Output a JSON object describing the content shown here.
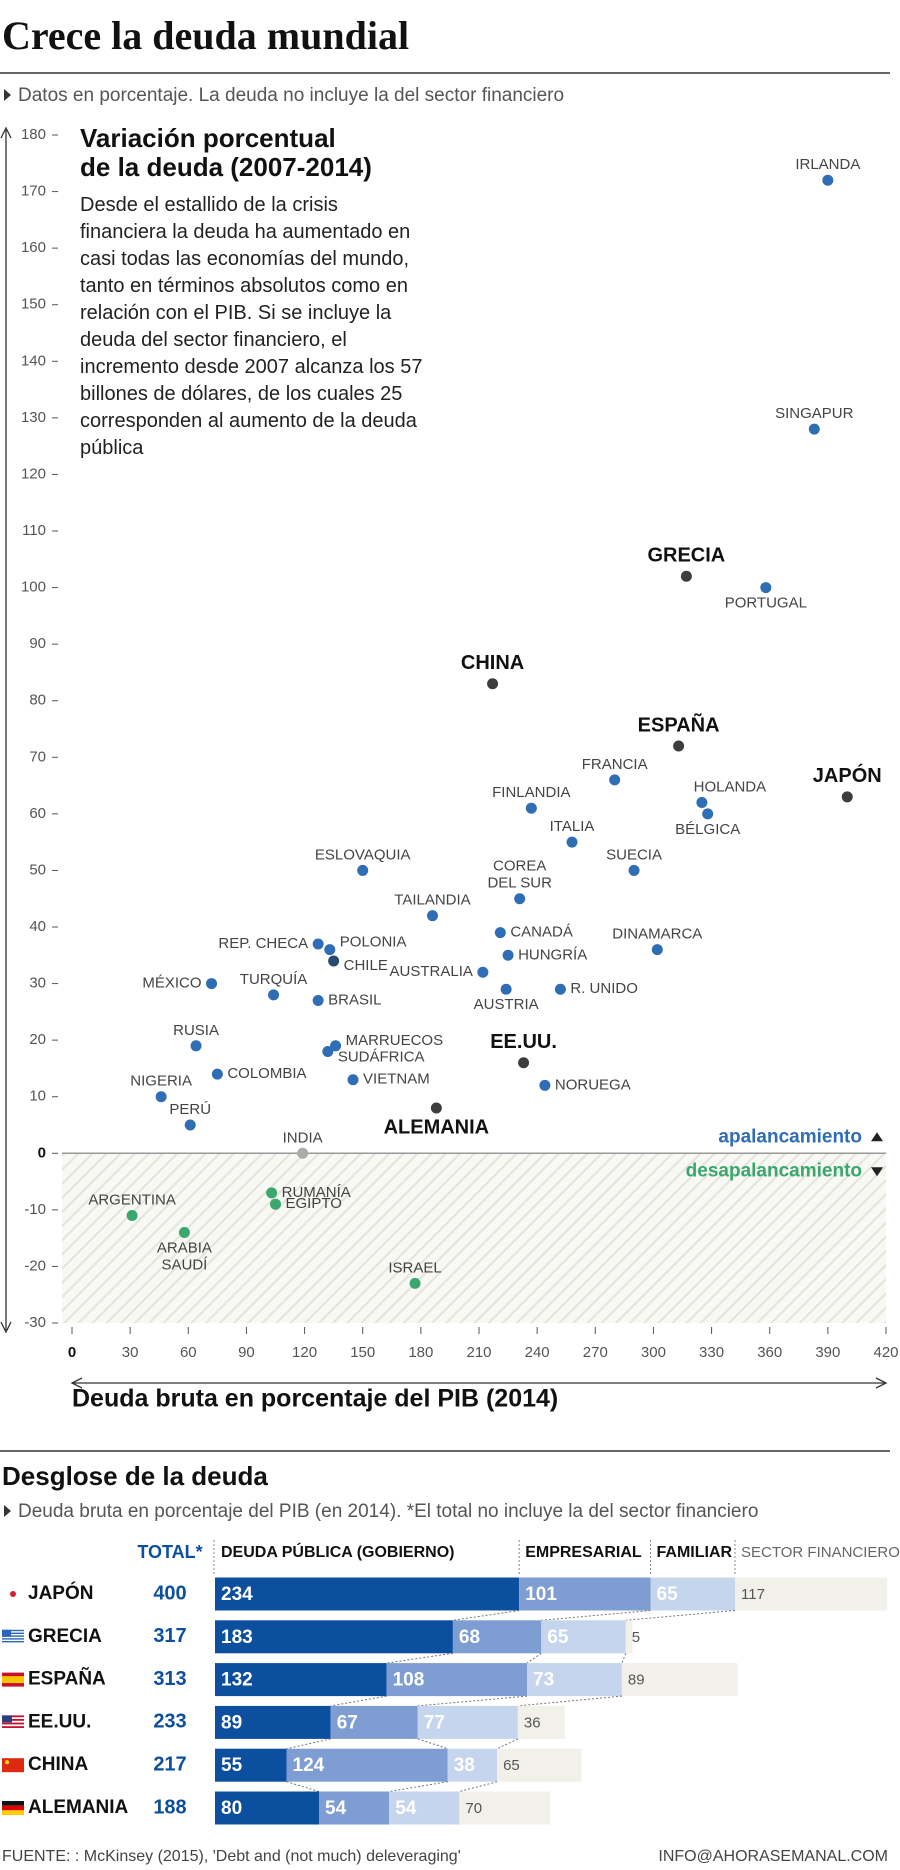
{
  "header": {
    "title": "Crece la deuda mundial",
    "subtitle": "Datos en porcentaje. La deuda no incluye la del sector financiero"
  },
  "chart_data": [
    {
      "type": "scatter",
      "annotation_title": [
        "Variación porcentual",
        "de la deuda (2007-2014)"
      ],
      "annotation_text": "Desde el estallido de la crisis financiera la deuda ha aumentado en casi todas las economías del mundo, tanto en términos absolutos como en relación con el PIB. Si se incluye la deuda del sector financiero, el incremento desde 2007 alcanza los 57 billones de dólares, de los cuales 25 corresponden al aumento de la deuda pública",
      "xlabel": "Deuda bruta en porcentaje del PIB (2014)",
      "xlim": [
        0,
        420
      ],
      "xticks": [
        0,
        30,
        60,
        90,
        120,
        150,
        180,
        210,
        240,
        270,
        300,
        330,
        360,
        390,
        420
      ],
      "ylim": [
        -30,
        180
      ],
      "yticks": [
        -30,
        -20,
        -10,
        0,
        10,
        20,
        30,
        40,
        50,
        60,
        70,
        80,
        90,
        100,
        110,
        120,
        130,
        140,
        150,
        160,
        170,
        180
      ],
      "legend": [
        {
          "name": "apalancamiento",
          "color": "#2f6db5"
        },
        {
          "name": "desapalancamiento",
          "color": "#3aa76d"
        }
      ],
      "points": [
        {
          "label": [
            "IRLANDA"
          ],
          "x": 390,
          "y": 172,
          "color": "#2f6db5"
        },
        {
          "label": [
            "SINGAPUR"
          ],
          "x": 383,
          "y": 128,
          "color": "#2f6db5"
        },
        {
          "label": [
            "GRECIA"
          ],
          "x": 317,
          "y": 102,
          "color": "#3d3d3d",
          "emphasis": true
        },
        {
          "label": [
            "PORTUGAL"
          ],
          "x": 358,
          "y": 100,
          "color": "#2f6db5"
        },
        {
          "label": [
            "CHINA"
          ],
          "x": 217,
          "y": 83,
          "color": "#3d3d3d",
          "emphasis": true
        },
        {
          "label": [
            "ESPAÑA"
          ],
          "x": 313,
          "y": 72,
          "color": "#3d3d3d",
          "emphasis": true
        },
        {
          "label": [
            "JAPÓN"
          ],
          "x": 400,
          "y": 63,
          "color": "#3d3d3d",
          "emphasis": true
        },
        {
          "label": [
            "FRANCIA"
          ],
          "x": 280,
          "y": 66,
          "color": "#2f6db5"
        },
        {
          "label": [
            "HOLANDA"
          ],
          "x": 325,
          "y": 62,
          "color": "#2f6db5"
        },
        {
          "label": [
            "BÉLGICA"
          ],
          "x": 328,
          "y": 60,
          "color": "#2f6db5"
        },
        {
          "label": [
            "FINLANDIA"
          ],
          "x": 237,
          "y": 61,
          "color": "#2f6db5"
        },
        {
          "label": [
            "ITALIA"
          ],
          "x": 258,
          "y": 55,
          "color": "#2f6db5"
        },
        {
          "label": [
            "SUECIA"
          ],
          "x": 290,
          "y": 50,
          "color": "#2f6db5"
        },
        {
          "label": [
            "ESLOVAQUIA"
          ],
          "x": 150,
          "y": 50,
          "color": "#2f6db5"
        },
        {
          "label": [
            "COREA",
            "DEL SUR"
          ],
          "x": 231,
          "y": 45,
          "color": "#2f6db5"
        },
        {
          "label": [
            "TAILANDIA"
          ],
          "x": 186,
          "y": 42,
          "color": "#2f6db5"
        },
        {
          "label": [
            "CANADÁ"
          ],
          "x": 221,
          "y": 39,
          "color": "#2f6db5"
        },
        {
          "label": [
            "DINAMARCA"
          ],
          "x": 302,
          "y": 36,
          "color": "#2f6db5"
        },
        {
          "label": [
            "REP. CHECA"
          ],
          "x": 127,
          "y": 37,
          "color": "#2f6db5"
        },
        {
          "label": [
            "POLONIA"
          ],
          "x": 133,
          "y": 36,
          "color": "#2f6db5"
        },
        {
          "label": [
            "CHILE"
          ],
          "x": 135,
          "y": 34,
          "color": "#2b4a6e"
        },
        {
          "label": [
            "HUNGRÍA"
          ],
          "x": 225,
          "y": 35,
          "color": "#2f6db5"
        },
        {
          "label": [
            "AUSTRALIA"
          ],
          "x": 212,
          "y": 32,
          "color": "#2f6db5"
        },
        {
          "label": [
            "R. UNIDO"
          ],
          "x": 252,
          "y": 29,
          "color": "#2f6db5"
        },
        {
          "label": [
            "AUSTRIA"
          ],
          "x": 224,
          "y": 29,
          "color": "#2f6db5"
        },
        {
          "label": [
            "MÉXICO"
          ],
          "x": 72,
          "y": 30,
          "color": "#2f6db5"
        },
        {
          "label": [
            "TURQUÍA"
          ],
          "x": 104,
          "y": 28,
          "color": "#2f6db5"
        },
        {
          "label": [
            "BRASIL"
          ],
          "x": 127,
          "y": 27,
          "color": "#2f6db5"
        },
        {
          "label": [
            "RUSIA"
          ],
          "x": 64,
          "y": 19,
          "color": "#2f6db5"
        },
        {
          "label": [
            "MARRUECOS"
          ],
          "x": 136,
          "y": 19,
          "color": "#2f6db5"
        },
        {
          "label": [
            "SUDÁFRICA"
          ],
          "x": 132,
          "y": 18,
          "color": "#2f6db5"
        },
        {
          "label": [
            "COLOMBIA"
          ],
          "x": 75,
          "y": 14,
          "color": "#2f6db5"
        },
        {
          "label": [
            "VIETNAM"
          ],
          "x": 145,
          "y": 13,
          "color": "#2f6db5"
        },
        {
          "label": [
            "EE.UU."
          ],
          "x": 233,
          "y": 16,
          "color": "#3d3d3d",
          "emphasis": true
        },
        {
          "label": [
            "NORUEGA"
          ],
          "x": 244,
          "y": 12,
          "color": "#2f6db5"
        },
        {
          "label": [
            "ALEMANIA"
          ],
          "x": 188,
          "y": 8,
          "color": "#3d3d3d",
          "emphasis": true
        },
        {
          "label": [
            "NIGERIA"
          ],
          "x": 46,
          "y": 10,
          "color": "#2f6db5"
        },
        {
          "label": [
            "PERÚ"
          ],
          "x": 61,
          "y": 5,
          "color": "#2f6db5"
        },
        {
          "label": [
            "INDIA"
          ],
          "x": 119,
          "y": 0,
          "color": "#aaaaaa"
        },
        {
          "label": [
            "ARGENTINA"
          ],
          "x": 31,
          "y": -11,
          "color": "#3aa76d"
        },
        {
          "label": [
            "RUMANÍA"
          ],
          "x": 103,
          "y": -7,
          "color": "#3aa76d"
        },
        {
          "label": [
            "EGIPTO"
          ],
          "x": 105,
          "y": -9,
          "color": "#3aa76d"
        },
        {
          "label": [
            "ARABIA",
            "SAUDÍ"
          ],
          "x": 58,
          "y": -14,
          "color": "#3aa76d"
        },
        {
          "label": [
            "ISRAEL"
          ],
          "x": 177,
          "y": -23,
          "color": "#3aa76d"
        }
      ]
    },
    {
      "type": "bar",
      "title": "Desglose de la deuda",
      "subtitle": "Deuda bruta en porcentaje del PIB (en 2014). *El total no incluye la del sector financiero",
      "total_label": "TOTAL*",
      "categories": [
        "JAPÓN",
        "GRECIA",
        "ESPAÑA",
        "EE.UU.",
        "CHINA",
        "ALEMANIA"
      ],
      "totals": [
        400,
        317,
        313,
        233,
        217,
        188
      ],
      "series": [
        {
          "name": "DEUDA PÚBLICA (GOBIERNO)",
          "color": "#0b4f9e",
          "values": [
            234,
            183,
            132,
            89,
            55,
            80
          ]
        },
        {
          "name": "EMPRESARIAL",
          "color": "#7e9ed3",
          "values": [
            101,
            68,
            108,
            67,
            124,
            54
          ]
        },
        {
          "name": "FAMILIAR",
          "color": "#c5d5ee",
          "values": [
            65,
            65,
            73,
            77,
            38,
            54
          ]
        },
        {
          "name": "SECTOR FINANCIERO",
          "color": "#f1f1ea",
          "values": [
            117,
            5,
            89,
            36,
            65,
            70
          ]
        }
      ]
    }
  ],
  "footer": {
    "source": "FUENTE: : McKinsey (2015), 'Debt and (not much) deleveraging'",
    "credit": "INFO@AHORASEMANAL.COM"
  }
}
